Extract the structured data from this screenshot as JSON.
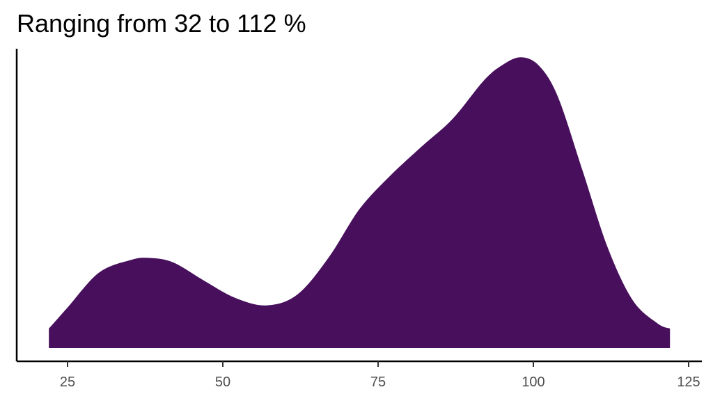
{
  "chart_data": {
    "type": "area",
    "title": "Ranging from 32 to 112 %",
    "xlabel": "",
    "ylabel": "",
    "xlim": [
      18,
      127
    ],
    "ylim": [
      0,
      1.0
    ],
    "x_ticks": [
      25,
      50,
      75,
      100,
      125
    ],
    "grid": false,
    "legend": "none",
    "fill_color": "#48105C",
    "series": [
      {
        "x": [
          22,
          25,
          30,
          35,
          38,
          42,
          47,
          52,
          57,
          62,
          67,
          72,
          77,
          82,
          87,
          92,
          95,
          98,
          101,
          104,
          108,
          112,
          116,
          120,
          122
        ],
        "values": [
          0.065,
          0.135,
          0.25,
          0.292,
          0.3,
          0.285,
          0.224,
          0.167,
          0.142,
          0.178,
          0.3,
          0.462,
          0.574,
          0.67,
          0.762,
          0.889,
          0.941,
          0.967,
          0.937,
          0.833,
          0.585,
          0.333,
          0.159,
          0.082,
          0.065
        ]
      }
    ]
  }
}
